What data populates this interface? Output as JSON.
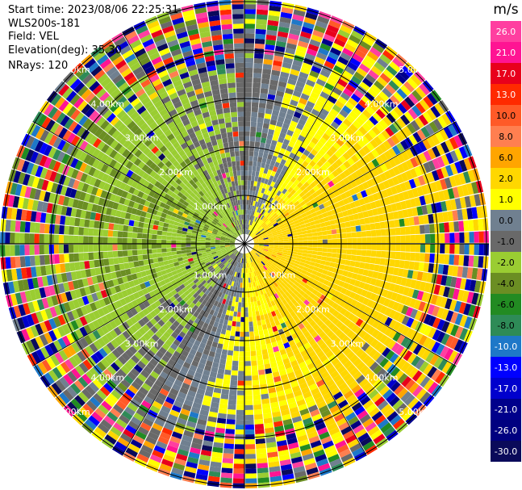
{
  "info": {
    "start_time": "Start time: 2023/08/06 22:25:31",
    "instrument": "WLS200s-181",
    "field": "Field: VEL",
    "elevation": "Elevation(deg): 35.30",
    "nrays": "NRays: 120"
  },
  "chart_data": {
    "type": "heatmap",
    "projection": "polar-ppi",
    "field": "VEL",
    "units": "m/s",
    "elevation_deg": 35.3,
    "n_rays": 120,
    "range_rings_km": [
      1.0,
      2.0,
      3.0,
      4.0,
      5.0
    ],
    "ring_labels": [
      "1.00km",
      "2.00km",
      "3.00km",
      "4.00km",
      "5.00km"
    ],
    "max_range_km": 5.0,
    "colorbar": {
      "label": "m/s",
      "ticks": [
        "26.0",
        "21.0",
        "17.0",
        "13.0",
        "10.0",
        "8.0",
        "6.0",
        "2.0",
        "1.0",
        "0.0",
        "-1.0",
        "-2.0",
        "-4.0",
        "-6.0",
        "-8.0",
        "-10.0",
        "-13.0",
        "-17.0",
        "-21.0",
        "-26.0",
        "-30.0"
      ],
      "colors": [
        "#ff3fa0",
        "#ff1493",
        "#e8001c",
        "#ff2a00",
        "#ff5a28",
        "#ff7f50",
        "#ffa500",
        "#ffd700",
        "#ffff00",
        "#708090",
        "#696969",
        "#9acd32",
        "#6b8e23",
        "#228b22",
        "#2e8b57",
        "#1e78c8",
        "#0000ff",
        "#0000cd",
        "#00008b",
        "#000080",
        "#0a0a5a"
      ]
    },
    "velocity_pattern": {
      "near_positive_direction": "east",
      "near_negative_direction": "northwest",
      "near_range_amplitude_ms": 3.0,
      "far_range_noisy_beyond_km": 3.6
    }
  }
}
